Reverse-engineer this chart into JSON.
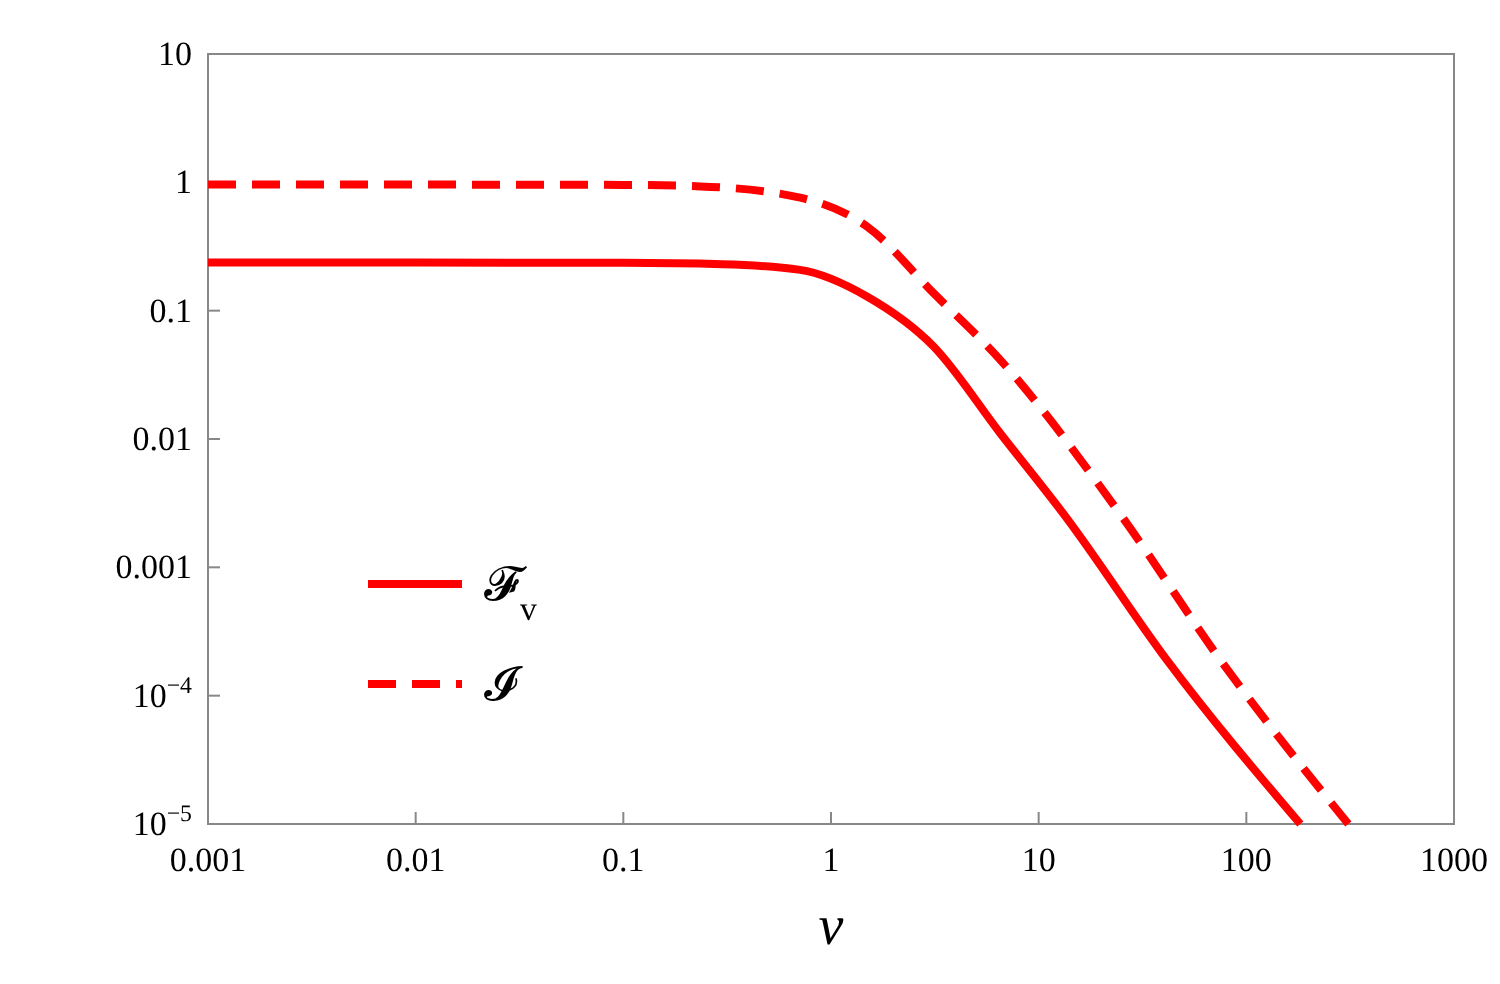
{
  "chart_data": {
    "type": "line",
    "xlabel": "v",
    "log": "xy",
    "legend": "bottom left",
    "grid": false,
    "xlim": [
      0.001,
      1000
    ],
    "xticks": [
      0.001,
      0.01,
      0.1,
      1,
      10,
      100,
      1000
    ],
    "ylim": [
      1e-05,
      10
    ],
    "yticks": [
      {
        "value": 1e-05,
        "label": "10$^{−5}$"
      },
      {
        "value": 0.0001,
        "label": "10$^{−4}$"
      },
      0.001,
      0.01,
      0.1,
      1,
      10
    ],
    "series": [
      {
        "name": "𝓕$_{v}$",
        "color": "#ff0000",
        "line_style": "solid",
        "x": [
          0.001,
          0.01,
          0.1,
          0.3,
          0.71,
          1.49,
          3.12,
          6.53,
          13.7,
          41.4,
          182
        ],
        "values": [
          0.237,
          0.237,
          0.236,
          0.23,
          0.208,
          0.129,
          0.0526,
          0.0111,
          0.0024,
          0.00019,
          1e-05
        ]
      },
      {
        "name": "𝓘",
        "color": "#ff0000",
        "line_style": "dashed",
        "x": [
          0.001,
          0.01,
          0.1,
          0.235,
          0.71,
          1.49,
          3.12,
          6.53,
          24.7,
          75,
          310
        ],
        "values": [
          0.96,
          0.96,
          0.955,
          0.93,
          0.76,
          0.453,
          0.137,
          0.0414,
          0.0026,
          0.00019,
          1e-05
        ]
      }
    ]
  }
}
